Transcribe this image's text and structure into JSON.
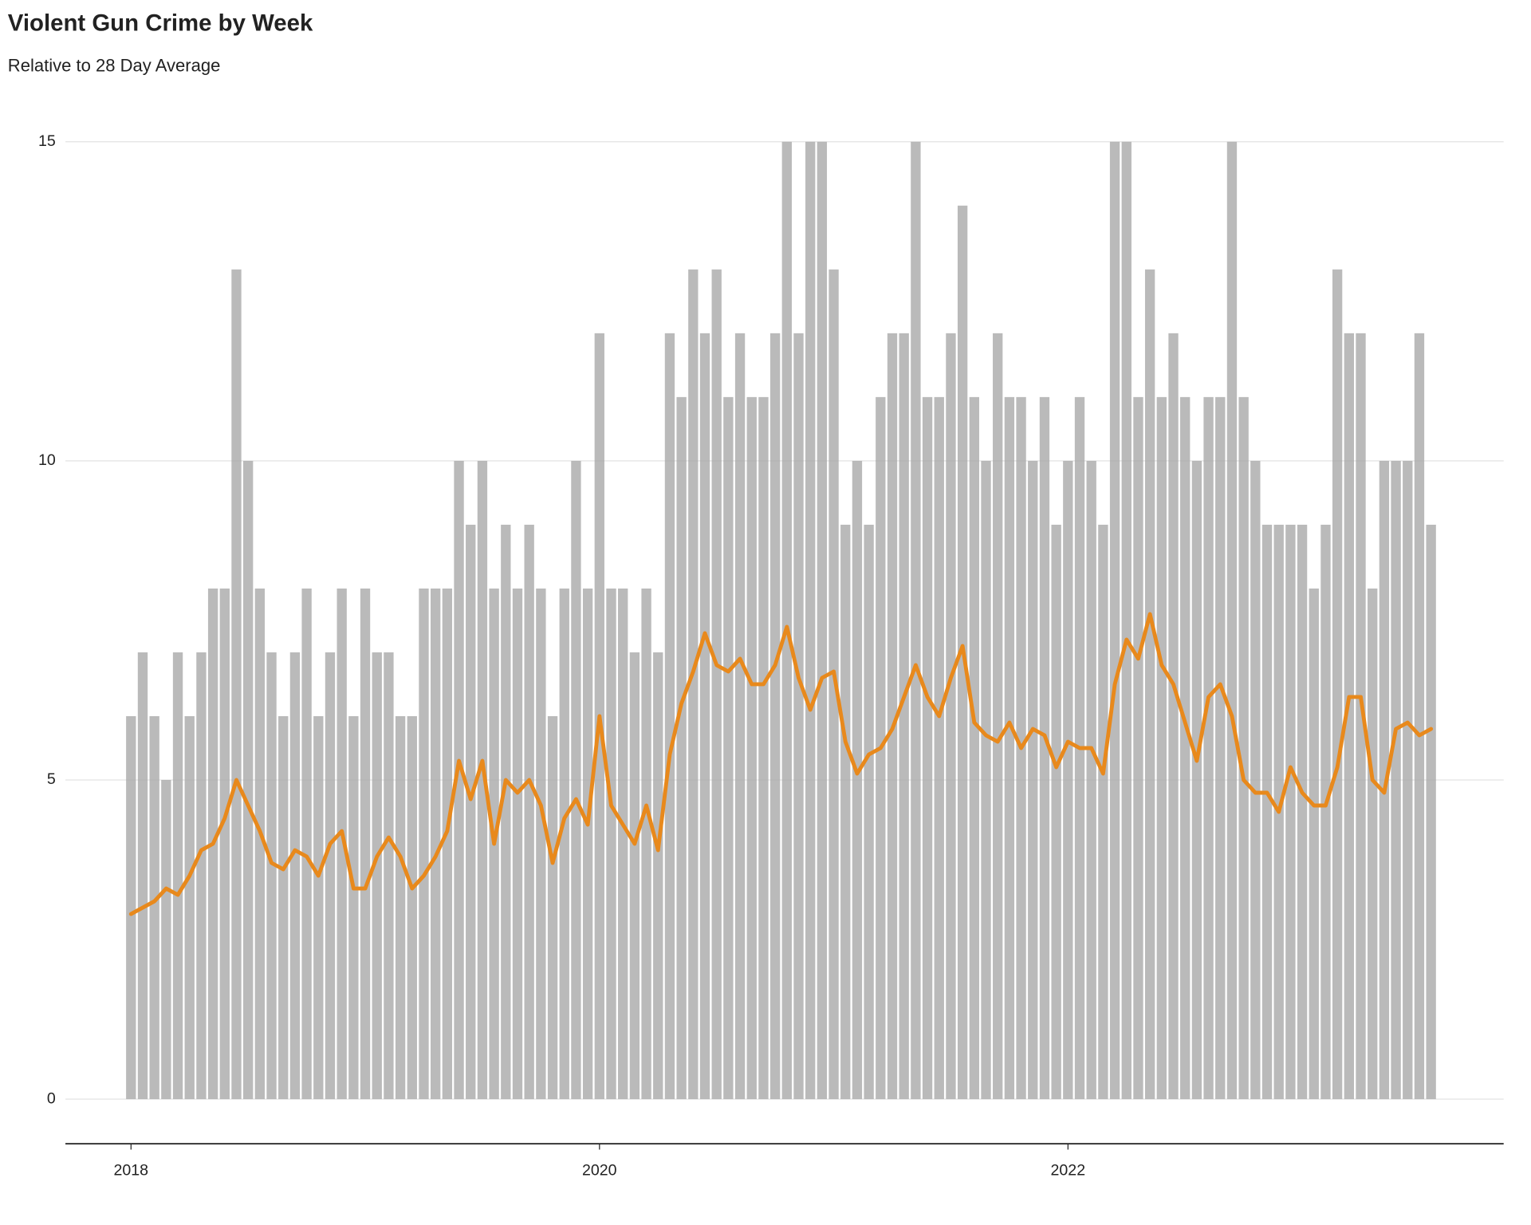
{
  "chart_data": {
    "type": "combo",
    "title": "Violent Gun Crime by Week",
    "subtitle": "Relative to 28 Day Average",
    "x": [
      2018,
      2018.05,
      2018.1,
      2018.15,
      2018.2,
      2018.25,
      2018.3,
      2018.35,
      2018.4,
      2018.45,
      2018.5,
      2018.55,
      2018.6,
      2018.65,
      2018.7,
      2018.75,
      2018.8,
      2018.85,
      2018.9,
      2018.95,
      2019,
      2019.05,
      2019.1,
      2019.15,
      2019.2,
      2019.25,
      2019.3,
      2019.35,
      2019.4,
      2019.45,
      2019.5,
      2019.55,
      2019.6,
      2019.65,
      2019.7,
      2019.75,
      2019.8,
      2019.85,
      2019.9,
      2019.95,
      2020,
      2020.05,
      2020.1,
      2020.15,
      2020.2,
      2020.25,
      2020.3,
      2020.35,
      2020.4,
      2020.45,
      2020.5,
      2020.55,
      2020.6,
      2020.65,
      2020.7,
      2020.75,
      2020.8,
      2020.85,
      2020.9,
      2020.95,
      2021,
      2021.05,
      2021.1,
      2021.15,
      2021.2,
      2021.25,
      2021.3,
      2021.35,
      2021.4,
      2021.45,
      2021.5,
      2021.55,
      2021.6,
      2021.65,
      2021.7,
      2021.75,
      2021.8,
      2021.85,
      2021.9,
      2021.95,
      2022,
      2022.05,
      2022.1,
      2022.15,
      2022.2,
      2022.25,
      2022.3,
      2022.35,
      2022.4,
      2022.45,
      2022.5,
      2022.55,
      2022.6,
      2022.65,
      2022.7,
      2022.75,
      2022.8,
      2022.85,
      2022.9,
      2022.95,
      2023,
      2023.05,
      2023.1,
      2023.15,
      2023.2,
      2023.25,
      2023.3,
      2023.35,
      2023.4,
      2023.45,
      2023.5,
      2023.55
    ],
    "series": [
      {
        "type": "bar",
        "color": "#a3a3a3",
        "values": [
          6,
          7,
          6,
          5,
          7,
          6,
          7,
          8,
          8,
          13,
          10,
          8,
          7,
          6,
          7,
          8,
          6,
          7,
          8,
          6,
          8,
          7,
          7,
          6,
          6,
          8,
          8,
          8,
          10,
          9,
          10,
          8,
          9,
          8,
          9,
          8,
          6,
          8,
          10,
          8,
          12,
          8,
          8,
          7,
          8,
          7,
          12,
          11,
          13,
          12,
          13,
          11,
          12,
          11,
          11,
          12,
          15,
          12,
          15,
          15,
          13,
          9,
          10,
          9,
          11,
          12,
          12,
          15,
          11,
          11,
          12,
          14,
          11,
          10,
          12,
          11,
          11,
          10,
          11,
          9,
          10,
          11,
          10,
          9,
          15,
          15,
          11,
          13,
          11,
          12,
          11,
          10,
          11,
          11,
          15,
          11,
          10,
          9,
          9,
          9,
          9,
          8,
          9,
          13,
          12,
          12,
          8,
          10,
          10,
          10,
          12,
          9
        ]
      },
      {
        "type": "line",
        "color": "#e8891c",
        "values": [
          2.9,
          3.0,
          3.1,
          3.3,
          3.2,
          3.5,
          3.9,
          4.0,
          4.4,
          5.0,
          4.6,
          4.2,
          3.7,
          3.6,
          3.9,
          3.8,
          3.5,
          4.0,
          4.2,
          3.3,
          3.3,
          3.8,
          4.1,
          3.8,
          3.3,
          3.5,
          3.8,
          4.2,
          5.3,
          4.7,
          5.3,
          4.0,
          5.0,
          4.8,
          5.0,
          4.6,
          3.7,
          4.4,
          4.7,
          4.3,
          6.0,
          4.6,
          4.3,
          4.0,
          4.6,
          3.9,
          5.4,
          6.2,
          6.7,
          7.3,
          6.8,
          6.7,
          6.9,
          6.5,
          6.5,
          6.8,
          7.4,
          6.6,
          6.1,
          6.6,
          6.7,
          5.6,
          5.1,
          5.4,
          5.5,
          5.8,
          6.3,
          6.8,
          6.3,
          6.0,
          6.6,
          7.1,
          5.9,
          5.7,
          5.6,
          5.9,
          5.5,
          5.8,
          5.7,
          5.2,
          5.6,
          5.5,
          5.5,
          5.1,
          6.5,
          7.2,
          6.9,
          7.6,
          6.8,
          6.5,
          5.9,
          5.3,
          6.3,
          6.5,
          6.0,
          5.0,
          4.8,
          4.8,
          4.5,
          5.2,
          4.8,
          4.6,
          4.6,
          5.2,
          6.3,
          6.3,
          5.0,
          4.8,
          5.8,
          5.9,
          5.7,
          5.8
        ]
      }
    ],
    "xlim": [
      2017.72,
      2023.86
    ],
    "xticks": [
      2018,
      2020,
      2022
    ],
    "ylim": [
      -0.7,
      15
    ],
    "yticks": [
      0,
      5,
      10,
      15
    ],
    "grid": true
  }
}
